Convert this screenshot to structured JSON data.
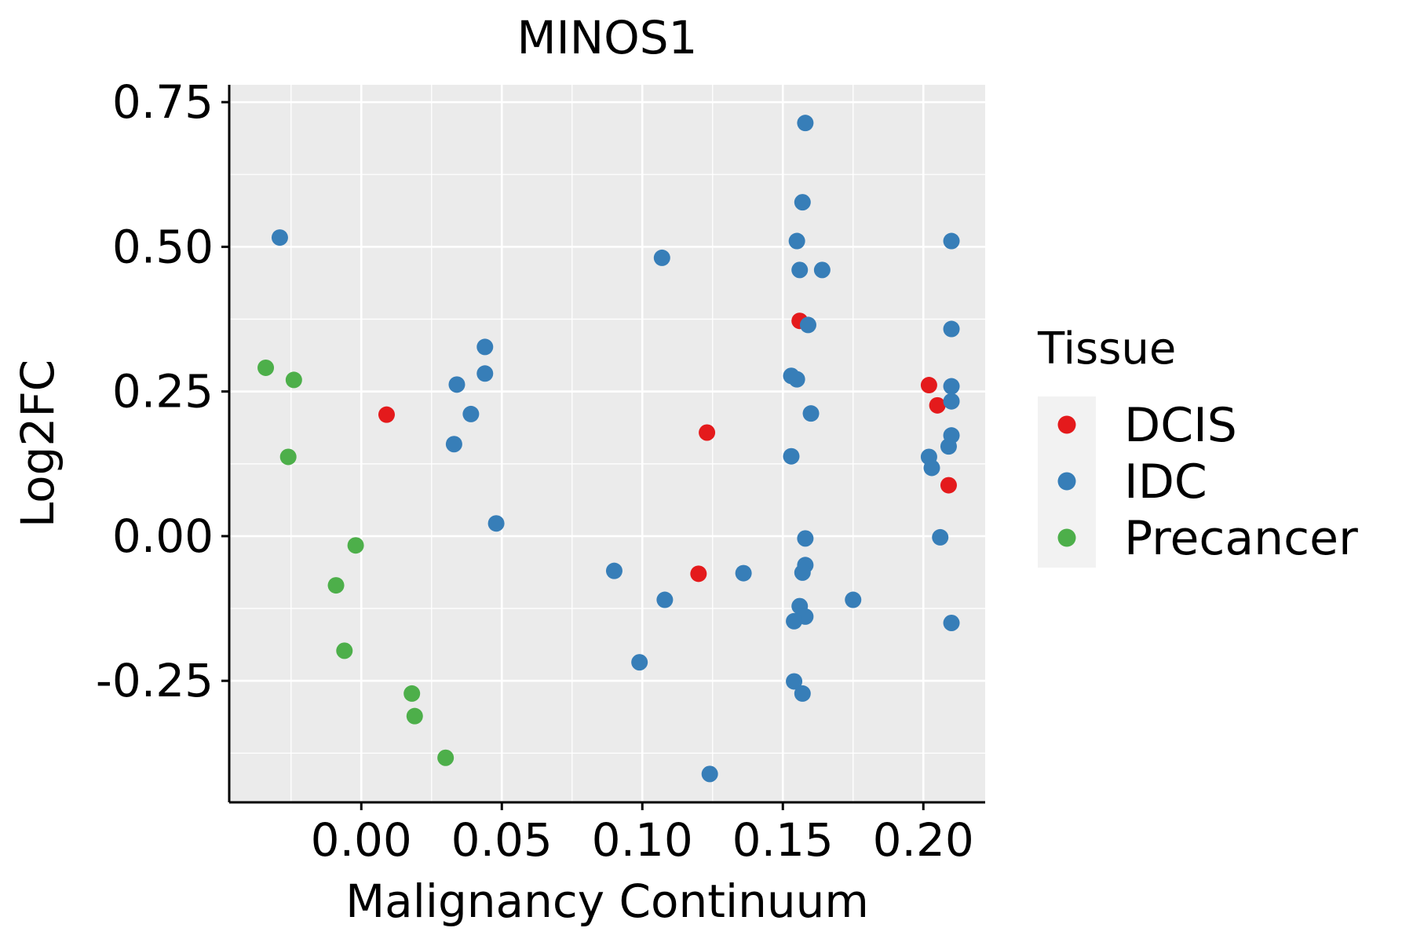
{
  "chart_data": {
    "type": "scatter",
    "title": "MINOS1",
    "xlabel": "Malignancy Continuum",
    "ylabel": "Log2FC",
    "xlim": [
      -0.047,
      0.222
    ],
    "ylim": [
      -0.46,
      0.78
    ],
    "x_ticks": [
      0.0,
      0.05,
      0.1,
      0.15,
      0.2
    ],
    "x_tick_labels": [
      "0.00",
      "0.05",
      "0.10",
      "0.15",
      "0.20"
    ],
    "y_ticks": [
      -0.25,
      0.0,
      0.25,
      0.5,
      0.75
    ],
    "y_tick_labels": [
      "-0.25",
      "0.00",
      "0.25",
      "0.50",
      "0.75"
    ],
    "grid": true,
    "legend": {
      "title": "Tissue",
      "position": "right",
      "entries": [
        "DCIS",
        "IDC",
        "Precancer"
      ]
    },
    "colors": {
      "DCIS": "#E41A1C",
      "IDC": "#377EB8",
      "Precancer": "#4DAF4A",
      "panel_bg": "#EBEBEB",
      "legend_key_bg": "#F2F2F2",
      "grid": "#FFFFFF",
      "axis": "#000000"
    },
    "series": [
      {
        "name": "DCIS",
        "points": [
          [
            0.009,
            0.21
          ],
          [
            0.123,
            0.179
          ],
          [
            0.12,
            -0.065
          ],
          [
            0.156,
            0.372
          ],
          [
            0.202,
            0.261
          ],
          [
            0.205,
            0.226
          ],
          [
            0.209,
            0.088
          ]
        ]
      },
      {
        "name": "IDC",
        "points": [
          [
            -0.029,
            0.516
          ],
          [
            0.034,
            0.262
          ],
          [
            0.044,
            0.327
          ],
          [
            0.044,
            0.281
          ],
          [
            0.039,
            0.211
          ],
          [
            0.033,
            0.159
          ],
          [
            0.048,
            0.022
          ],
          [
            0.107,
            0.481
          ],
          [
            0.158,
            0.714
          ],
          [
            0.157,
            0.577
          ],
          [
            0.155,
            0.51
          ],
          [
            0.156,
            0.46
          ],
          [
            0.164,
            0.46
          ],
          [
            0.159,
            0.365
          ],
          [
            0.153,
            0.277
          ],
          [
            0.155,
            0.271
          ],
          [
            0.16,
            0.212
          ],
          [
            0.153,
            0.138
          ],
          [
            0.09,
            -0.06
          ],
          [
            0.108,
            -0.11
          ],
          [
            0.099,
            -0.218
          ],
          [
            0.136,
            -0.064
          ],
          [
            0.124,
            -0.411
          ],
          [
            0.158,
            -0.004
          ],
          [
            0.158,
            -0.05
          ],
          [
            0.157,
            -0.063
          ],
          [
            0.156,
            -0.121
          ],
          [
            0.158,
            -0.139
          ],
          [
            0.154,
            -0.147
          ],
          [
            0.175,
            -0.11
          ],
          [
            0.154,
            -0.251
          ],
          [
            0.157,
            -0.272
          ],
          [
            0.21,
            0.51
          ],
          [
            0.21,
            0.358
          ],
          [
            0.21,
            0.259
          ],
          [
            0.21,
            0.233
          ],
          [
            0.21,
            0.174
          ],
          [
            0.209,
            0.155
          ],
          [
            0.202,
            0.137
          ],
          [
            0.203,
            0.118
          ],
          [
            0.206,
            -0.002
          ],
          [
            0.21,
            -0.15
          ]
        ]
      },
      {
        "name": "Precancer",
        "points": [
          [
            -0.034,
            0.291
          ],
          [
            -0.024,
            0.27
          ],
          [
            -0.026,
            0.137
          ],
          [
            -0.002,
            -0.016
          ],
          [
            -0.009,
            -0.085
          ],
          [
            -0.006,
            -0.198
          ],
          [
            0.018,
            -0.272
          ],
          [
            0.019,
            -0.311
          ],
          [
            0.03,
            -0.383
          ]
        ]
      }
    ]
  }
}
